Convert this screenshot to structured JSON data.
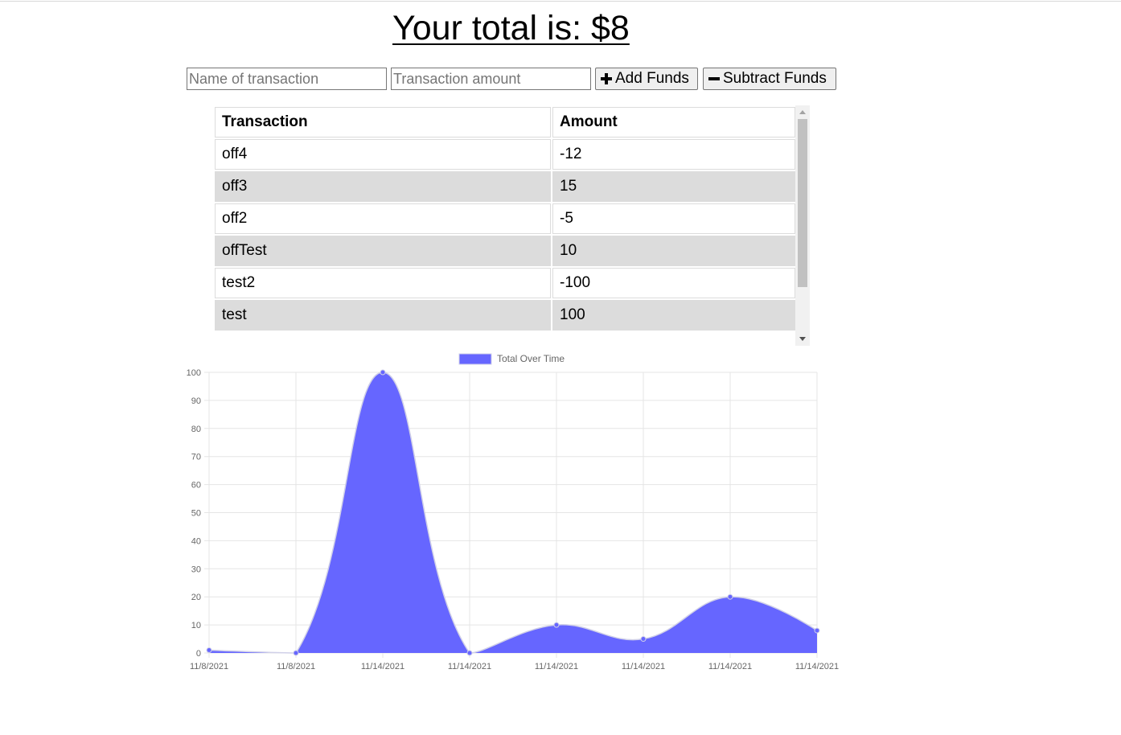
{
  "header": {
    "total_text": "Your total is: $8"
  },
  "form": {
    "name_placeholder": "Name of transaction",
    "amount_placeholder": "Transaction amount",
    "add_label": "Add Funds",
    "subtract_label": "Subtract Funds",
    "add_icon": "plus-icon",
    "subtract_icon": "minus-icon"
  },
  "table": {
    "headers": [
      "Transaction",
      "Amount"
    ],
    "rows": [
      {
        "name": "off4",
        "amount": "-12"
      },
      {
        "name": "off3",
        "amount": "15"
      },
      {
        "name": "off2",
        "amount": "-5"
      },
      {
        "name": "offTest",
        "amount": "10"
      },
      {
        "name": "test2",
        "amount": "-100"
      },
      {
        "name": "test",
        "amount": "100"
      }
    ]
  },
  "chart_data": {
    "type": "area",
    "series": [
      {
        "name": "Total Over Time",
        "color": "#6666ff",
        "values": [
          1,
          0,
          100,
          0,
          10,
          5,
          20,
          8
        ]
      }
    ],
    "categories": [
      "11/8/2021",
      "11/8/2021",
      "11/14/2021",
      "11/14/2021",
      "11/14/2021",
      "11/14/2021",
      "11/14/2021",
      "11/14/2021"
    ],
    "ylim": [
      0,
      100
    ],
    "yticks": [
      0,
      10,
      20,
      30,
      40,
      50,
      60,
      70,
      80,
      90,
      100
    ],
    "grid": true,
    "legend": "top-center",
    "curve": "smooth"
  }
}
